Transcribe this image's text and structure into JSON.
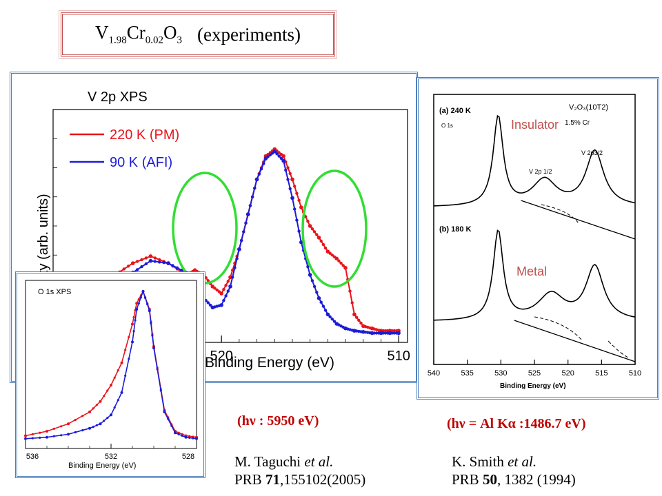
{
  "slide": {
    "title": {
      "v": "V",
      "sub1": "1.98",
      "cr": "Cr",
      "sub2": "0.02",
      "o": "O",
      "sub3": "3",
      "suffix": "(experiments)"
    }
  },
  "main_plot": {
    "title": "V 2p XPS",
    "ylabel": "Intensity (arb. units)",
    "xlabel": "Binding Energy (eV)",
    "legend": [
      "220 K (PM)",
      "90 K (AFI)"
    ],
    "colors": {
      "pm": "#e8141c",
      "afi": "#1c1cd8",
      "ellipse": "#33dd33"
    }
  },
  "inset_plot": {
    "title": "O 1s XPS",
    "xlabel": "Binding Energy (eV)"
  },
  "right_plot": {
    "panel_a": "(a) 240 K",
    "panel_b": "(b) 180 K",
    "sample": "V₂O₃(10T2)",
    "doping": "1.5% Cr",
    "o1s": "O 1s",
    "v2p12": "V 2p 1/2",
    "v2p32": "V 2p3/2",
    "insulator": "Insulator",
    "metal": "Metal",
    "xlabel": "Binding Energy (eV)",
    "label_color": "#c0504d"
  },
  "captions": {
    "energy_left": "(hν : 5950 eV)",
    "energy_right": "(hν = Al Kα :1486.7 eV)",
    "ref_left_authors": "M. Taguchi ",
    "ref_left_etal": "et al.",
    "ref_left_journal": "PRB ",
    "ref_left_vol": "71",
    "ref_left_rest": ",155102(2005)",
    "ref_right_authors": "K. Smith ",
    "ref_right_etal": "et al.",
    "ref_right_journal": "PRB ",
    "ref_right_vol": "50",
    "ref_right_rest": ", 1382 (1994)"
  },
  "chart_data": [
    {
      "type": "line",
      "title": "V 2p XPS",
      "xlabel": "Binding Energy (eV)",
      "ylabel": "Intensity (arb. units)",
      "x_reversed": true,
      "xlim": [
        529.5,
        509.5
      ],
      "x_ticks": [
        520,
        510
      ],
      "series": [
        {
          "name": "220 K (PM)",
          "color": "#e8141c",
          "x": [
            528,
            527,
            526,
            525,
            524,
            523,
            522,
            521.5,
            521,
            520.5,
            520,
            519.5,
            519,
            518.5,
            518,
            517.5,
            517,
            516.5,
            516,
            515.5,
            515,
            514.5,
            514,
            513.5,
            513,
            512.5,
            512,
            511.5,
            511,
            510.5,
            510
          ],
          "y": [
            0.23,
            0.26,
            0.29,
            0.34,
            0.37,
            0.34,
            0.29,
            0.31,
            0.29,
            0.24,
            0.21,
            0.28,
            0.4,
            0.55,
            0.7,
            0.8,
            0.83,
            0.8,
            0.7,
            0.58,
            0.5,
            0.45,
            0.39,
            0.36,
            0.32,
            0.12,
            0.07,
            0.06,
            0.05,
            0.05,
            0.05
          ]
        },
        {
          "name": "90 K (AFI)",
          "color": "#1c1cd8",
          "x": [
            528,
            527,
            526,
            525,
            524,
            523,
            522,
            521.5,
            521,
            520.5,
            520,
            519.5,
            519,
            518.5,
            518,
            517.5,
            517,
            516.5,
            516,
            515.5,
            515,
            514.5,
            514,
            513.5,
            513,
            512.5,
            512,
            511.5,
            511,
            510.5,
            510
          ],
          "y": [
            0.2,
            0.22,
            0.26,
            0.3,
            0.35,
            0.34,
            0.3,
            0.26,
            0.19,
            0.15,
            0.16,
            0.24,
            0.4,
            0.55,
            0.7,
            0.79,
            0.82,
            0.78,
            0.62,
            0.43,
            0.29,
            0.19,
            0.12,
            0.08,
            0.06,
            0.05,
            0.045,
            0.04,
            0.04,
            0.04,
            0.04
          ]
        }
      ]
    },
    {
      "type": "line",
      "title": "O 1s XPS",
      "xlabel": "Binding Energy (eV)",
      "x_reversed": true,
      "xlim": [
        536,
        528
      ],
      "x_ticks": [
        536,
        532,
        528
      ],
      "series": [
        {
          "name": "red",
          "color": "#e8141c",
          "x": [
            536,
            535,
            534,
            533,
            532.5,
            532,
            531.5,
            531,
            530.8,
            530.5,
            530.2,
            530,
            529.5,
            529,
            528.5,
            528
          ],
          "y": [
            0.03,
            0.06,
            0.11,
            0.19,
            0.26,
            0.37,
            0.52,
            0.78,
            0.92,
            1.0,
            0.88,
            0.63,
            0.2,
            0.06,
            0.03,
            0.02
          ]
        },
        {
          "name": "blue",
          "color": "#1c1cd8",
          "x": [
            536,
            535,
            534,
            533,
            532.5,
            532,
            531.5,
            531,
            530.8,
            530.5,
            530.2,
            530,
            529.5,
            529,
            528.5,
            528
          ],
          "y": [
            0.01,
            0.02,
            0.04,
            0.08,
            0.11,
            0.17,
            0.32,
            0.66,
            0.88,
            1.0,
            0.87,
            0.62,
            0.19,
            0.05,
            0.02,
            0.01
          ]
        }
      ]
    },
    {
      "type": "line",
      "xlabel": "Binding Energy (eV)",
      "x_reversed": true,
      "xlim": [
        540,
        510
      ],
      "x_ticks": [
        540,
        535,
        530,
        525,
        520,
        515,
        510
      ]
    }
  ]
}
